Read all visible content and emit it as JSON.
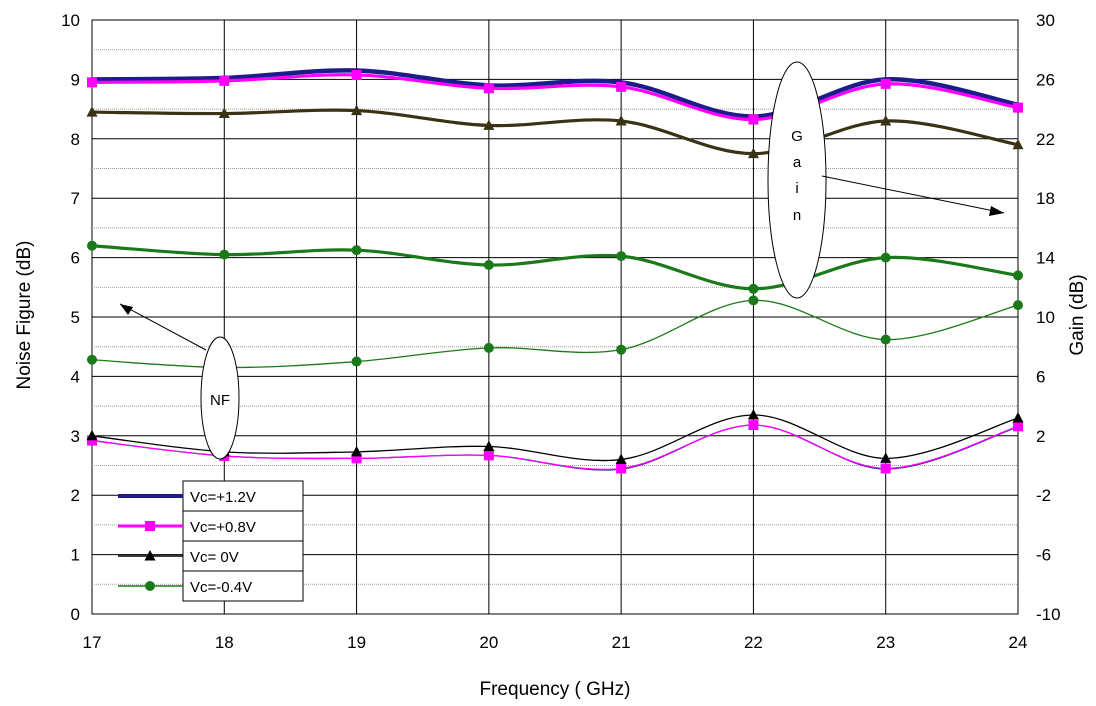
{
  "chart_data": {
    "type": "line",
    "xlabel": "Frequency ( GHz)",
    "ylabel": "Noise Figure (dB)",
    "y2label": "Gain (dB)",
    "x": [
      17,
      18,
      19,
      20,
      21,
      22,
      23,
      24
    ],
    "xlim": [
      17,
      24
    ],
    "ylim": [
      0,
      10
    ],
    "y2lim": [
      -10,
      30
    ],
    "xticks": [
      "17",
      "18",
      "19",
      "20",
      "21",
      "22",
      "23",
      "24"
    ],
    "yticks": [
      "0",
      "1",
      "2",
      "3",
      "4",
      "5",
      "6",
      "7",
      "8",
      "9",
      "10"
    ],
    "y2ticks": [
      "-10",
      "-6",
      "-2",
      "2",
      "6",
      "10",
      "14",
      "18",
      "22",
      "26",
      "30"
    ],
    "grid": true,
    "legend_position": "lower-left",
    "legend": [
      "Vc=+1.2V",
      "Vc=+0.8V",
      "Vc= 0V",
      "Vc=-0.4V"
    ],
    "annotations": {
      "gain_letters": [
        "G",
        "a",
        "i",
        "n"
      ],
      "nf": "NF"
    },
    "series": [
      {
        "group": "nf",
        "legend_index": 0,
        "color": "#1c1c8a",
        "marker": "none",
        "values": [
          2.92,
          2.66,
          2.62,
          2.67,
          2.44,
          3.18,
          2.44,
          3.15
        ]
      },
      {
        "group": "nf",
        "legend_index": 1,
        "color": "#ff00ff",
        "marker": "square",
        "values": [
          2.92,
          2.66,
          2.62,
          2.67,
          2.45,
          3.18,
          2.45,
          3.16
        ]
      },
      {
        "group": "nf",
        "legend_index": 2,
        "color": "#000000",
        "marker": "triangle",
        "values": [
          3.0,
          2.73,
          2.73,
          2.82,
          2.6,
          3.35,
          2.62,
          3.3
        ]
      },
      {
        "group": "nf",
        "legend_index": 3,
        "color": "#1a7a1a",
        "marker": "circle",
        "values": [
          4.28,
          4.15,
          4.25,
          4.48,
          4.45,
          5.28,
          4.62,
          5.2
        ]
      },
      {
        "group": "gain",
        "axis": "y2",
        "legend_index": 0,
        "color": "#1c1c8a",
        "marker": "none",
        "values": [
          26.0,
          26.1,
          26.6,
          25.6,
          25.8,
          23.5,
          26.0,
          24.3
        ]
      },
      {
        "group": "gain",
        "axis": "y2",
        "legend_index": 1,
        "color": "#ff00ff",
        "marker": "square",
        "values": [
          25.8,
          25.9,
          26.3,
          25.4,
          25.5,
          23.3,
          25.7,
          24.1
        ]
      },
      {
        "group": "gain",
        "axis": "y2",
        "legend_index": 2,
        "color": "#3a3215",
        "marker": "triangle",
        "values": [
          23.8,
          23.7,
          23.9,
          22.9,
          23.2,
          21.0,
          23.2,
          21.6
        ]
      },
      {
        "group": "gain",
        "axis": "y2",
        "legend_index": 3,
        "color": "#1a7a1a",
        "marker": "circle",
        "values": [
          14.8,
          14.2,
          14.5,
          13.5,
          14.1,
          11.9,
          14.0,
          12.8
        ]
      }
    ]
  }
}
